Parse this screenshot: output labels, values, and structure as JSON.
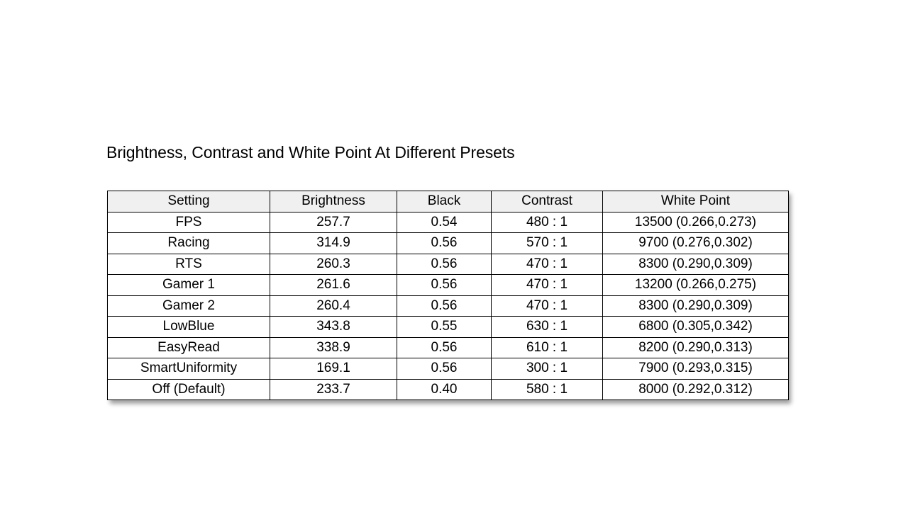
{
  "title": "Brightness, Contrast and White Point At Different Presets",
  "chart_data": {
    "type": "table",
    "title": "Brightness, Contrast and White Point At Different Presets",
    "columns": [
      "Setting",
      "Brightness",
      "Black",
      "Contrast",
      "White Point"
    ],
    "rows": [
      [
        "FPS",
        "257.7",
        "0.54",
        "480 : 1",
        "13500 (0.266,0.273)"
      ],
      [
        "Racing",
        "314.9",
        "0.56",
        "570 : 1",
        "9700 (0.276,0.302)"
      ],
      [
        "RTS",
        "260.3",
        "0.56",
        "470 : 1",
        "8300 (0.290,0.309)"
      ],
      [
        "Gamer 1",
        "261.6",
        "0.56",
        "470 : 1",
        "13200 (0.266,0.275)"
      ],
      [
        "Gamer 2",
        "260.4",
        "0.56",
        "470 : 1",
        "8300 (0.290,0.309)"
      ],
      [
        "LowBlue",
        "343.8",
        "0.55",
        "630 : 1",
        "6800 (0.305,0.342)"
      ],
      [
        "EasyRead",
        "338.9",
        "0.56",
        "610 : 1",
        "8200 (0.290,0.313)"
      ],
      [
        "SmartUniformity",
        "169.1",
        "0.56",
        "300 : 1",
        "7900 (0.293,0.315)"
      ],
      [
        "Off (Default)",
        "233.7",
        "0.40",
        "580 : 1",
        "8000 (0.292,0.312)"
      ]
    ]
  },
  "colors": {
    "header_bg": "#f0f0f0",
    "cell_bg": "#ffffff",
    "border": "#000000"
  }
}
